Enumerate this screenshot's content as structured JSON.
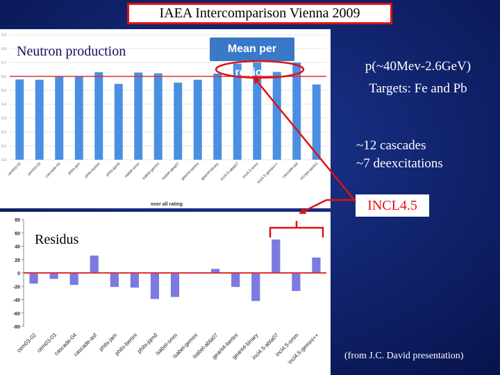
{
  "slide": {
    "title": "IAEA Intercomparison Vienna 2009",
    "neutron_label": "Neutron production",
    "mean_badge": "Mean per region",
    "projectile_line": "p(~40Mev-2.6GeV)",
    "targets_line": "Targets: Fe and Pb",
    "cascades_line": "~12 cascades",
    "deexcitations_line": "~7 deexcitations",
    "highlight_label": "INCL4.5",
    "residus_label": "Residus",
    "credit": "(from J.C. David presentation)"
  },
  "colors": {
    "background": "#0a1a5c",
    "top_bars": "#4a90e2",
    "bottom_bars": "#7a7ae0",
    "reference_line": "#e03030",
    "arrow": "#e01010"
  },
  "chart_data": [
    {
      "type": "bar",
      "title": "",
      "xlabel": "over all rating",
      "ylabel": "",
      "categories": [
        "cem03-02",
        "cem03-03",
        "cascade-04",
        "phits-jam",
        "phits-bertini",
        "phits-jqmd",
        "isabel-smm",
        "isabel-gemini",
        "isabel-abla07",
        "geant4-bertini",
        "geant4-binary",
        "incl4.5-abla07",
        "incl4.5-smm",
        "incl4.5-gemini++",
        "cascade-asf",
        "mcnpx-bertini"
      ],
      "values": [
        0.578,
        0.576,
        0.602,
        0.598,
        0.63,
        0.546,
        0.628,
        0.622,
        0.555,
        0.576,
        0.62,
        0.692,
        0.7,
        0.632,
        0.7,
        0.542
      ],
      "ylim": [
        0.0,
        0.9
      ],
      "reference_line": 0.6
    },
    {
      "type": "bar",
      "title": "",
      "xlabel": "",
      "ylabel": "",
      "categories": [
        "cem03-02",
        "cem03-03",
        "cascade-04",
        "cascade-asf",
        "phits-jam",
        "phits-bertini",
        "phits-jqmd",
        "isabel-smm",
        "isabel-gemini",
        "isabel-abla07",
        "geant4-bertini",
        "geant4-binary",
        "incl4.5-abla07",
        "incl4.5-smm",
        "incl4.5-gemini++"
      ],
      "values": [
        -16,
        -9,
        -18,
        26,
        -21,
        -22,
        -39,
        -36,
        0,
        6,
        -21,
        -42,
        50,
        -27,
        23
      ],
      "ylim": [
        -80,
        80
      ],
      "yticks": [
        -80,
        -60,
        -40,
        -20,
        0,
        20,
        40,
        60,
        80
      ]
    }
  ]
}
